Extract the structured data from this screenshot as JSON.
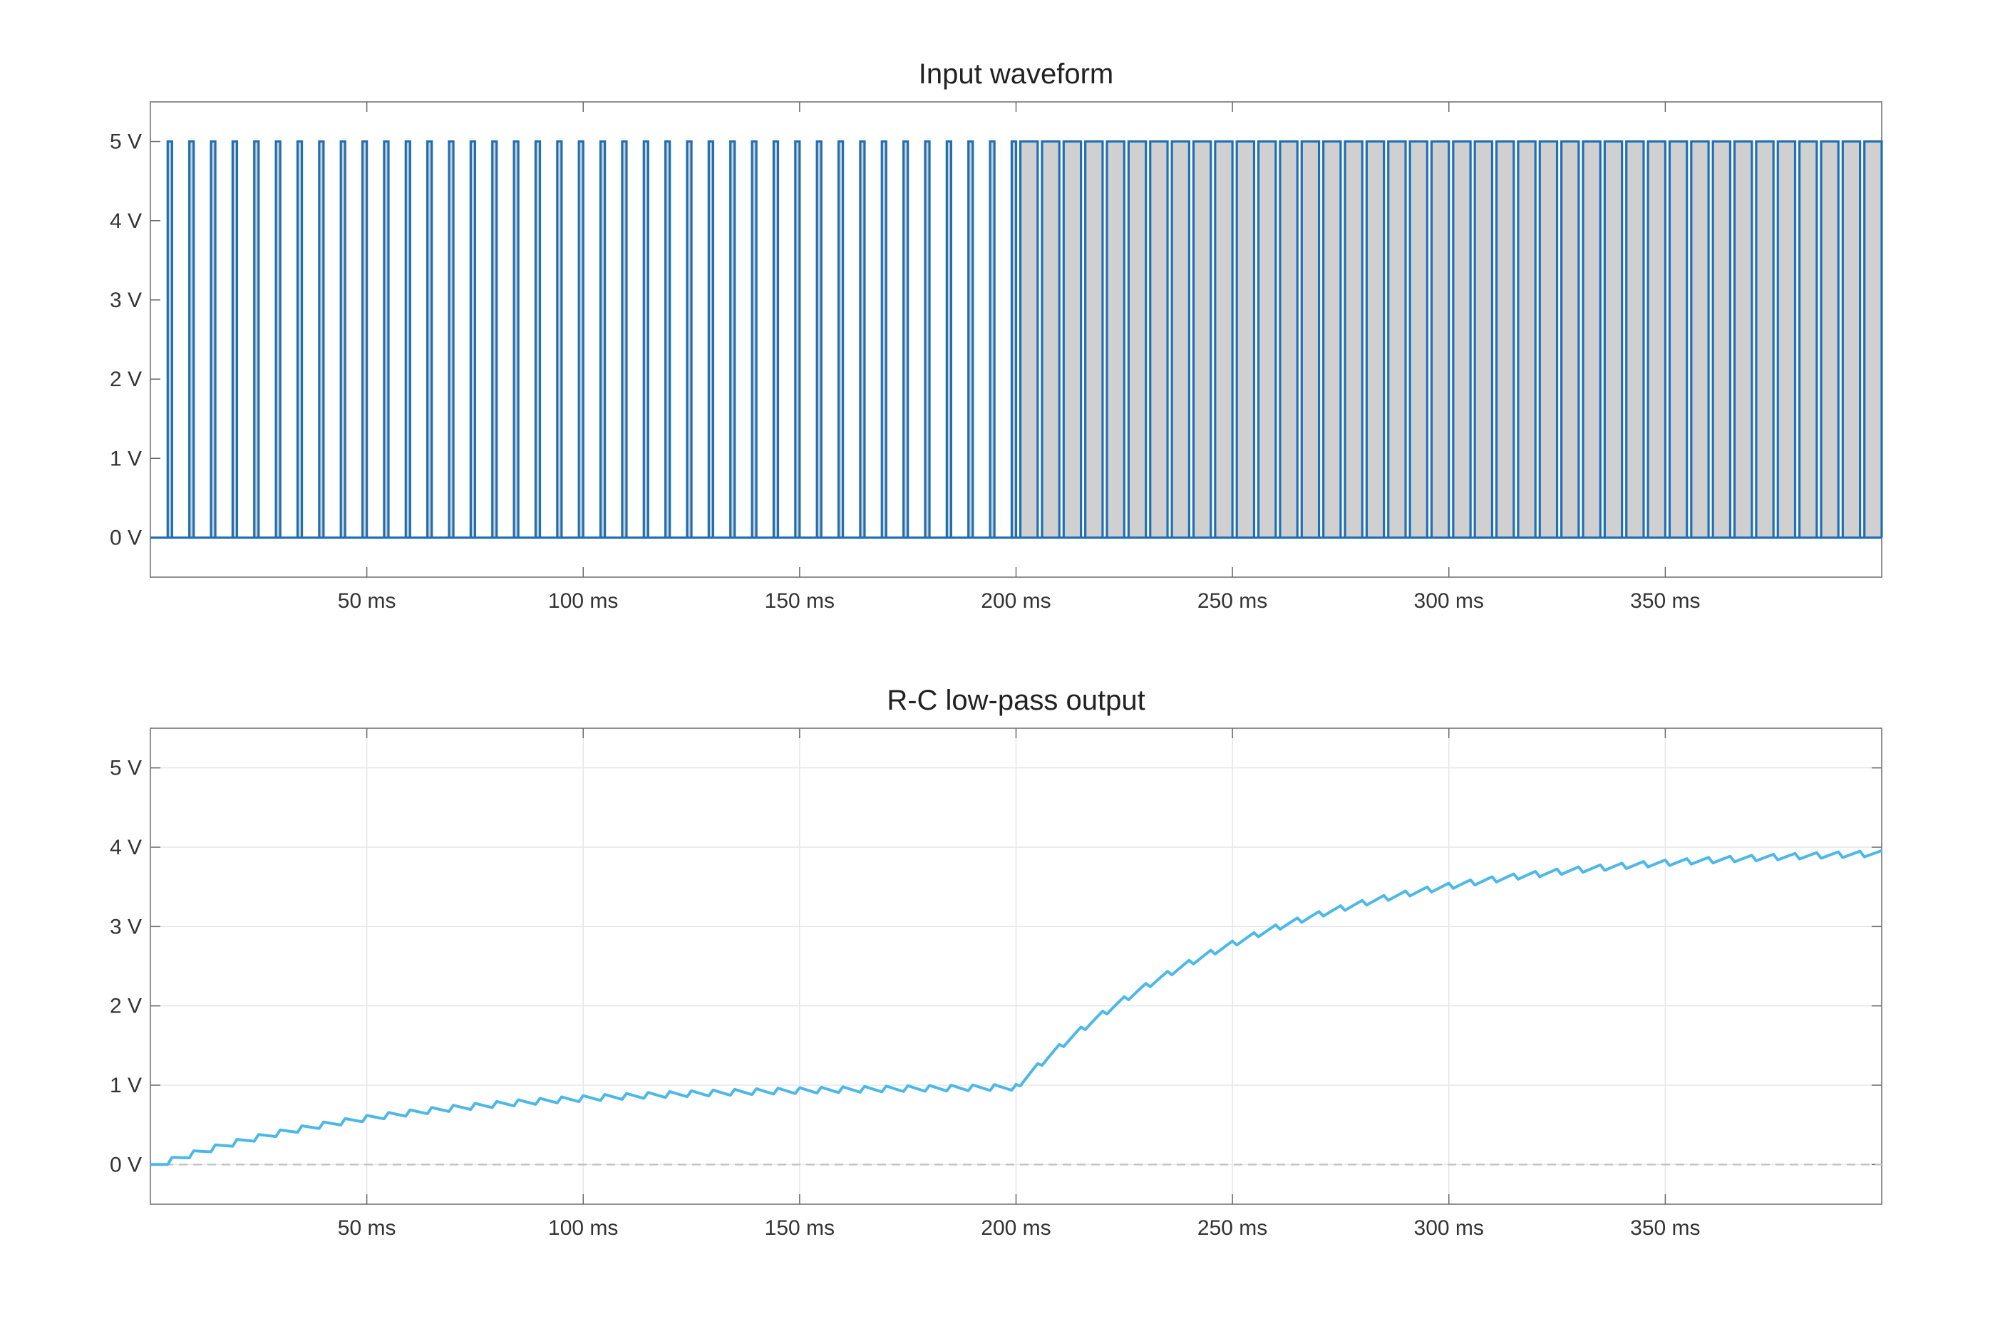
{
  "chart_data": [
    {
      "type": "line",
      "title": "Input waveform",
      "xlabel": "",
      "ylabel": "",
      "x_unit": "ms",
      "y_unit": "V",
      "xlim": [
        0,
        400
      ],
      "ylim": [
        -0.5,
        5.5
      ],
      "x_ticks": [
        50,
        100,
        150,
        200,
        250,
        300,
        350
      ],
      "x_tick_labels": [
        "50 ms",
        "100 ms",
        "150 ms",
        "200 ms",
        "250 ms",
        "300 ms",
        "350 ms"
      ],
      "y_ticks": [
        0,
        1,
        2,
        3,
        4,
        5
      ],
      "y_tick_labels": [
        "0 V",
        "1 V",
        "2 V",
        "3 V",
        "4 V",
        "5 V"
      ],
      "grid": false,
      "series": [
        {
          "kind": "pwm-square-wave",
          "low_v": 0,
          "high_v": 5,
          "period_ms": 5,
          "segments": [
            {
              "start_ms": 0,
              "end_ms": 200,
              "duty": 0.2
            },
            {
              "start_ms": 200,
              "end_ms": 400,
              "duty": 0.8
            }
          ],
          "color": "#1f6fb4",
          "fill": "#d0d0d0"
        }
      ]
    },
    {
      "type": "line",
      "title": "R-C low-pass output",
      "xlabel": "",
      "ylabel": "",
      "x_unit": "ms",
      "y_unit": "V",
      "xlim": [
        0,
        400
      ],
      "ylim": [
        -0.5,
        5.5
      ],
      "x_ticks": [
        50,
        100,
        150,
        200,
        250,
        300,
        350
      ],
      "x_tick_labels": [
        "50 ms",
        "100 ms",
        "150 ms",
        "200 ms",
        "250 ms",
        "300 ms",
        "350 ms"
      ],
      "y_ticks": [
        0,
        1,
        2,
        3,
        4,
        5
      ],
      "y_tick_labels": [
        "0 V",
        "1 V",
        "2 V",
        "3 V",
        "4 V",
        "5 V"
      ],
      "grid": true,
      "reference_line_y": 0,
      "series": [
        {
          "kind": "rc-filtered-pwm",
          "time_constant_ms": 55,
          "color": "#4db8e8",
          "approx_values": [
            {
              "x": 0,
              "y": 0.0
            },
            {
              "x": 50,
              "y": 0.62
            },
            {
              "x": 100,
              "y": 0.88
            },
            {
              "x": 150,
              "y": 0.96
            },
            {
              "x": 200,
              "y": 0.98
            },
            {
              "x": 250,
              "y": 3.0
            },
            {
              "x": 300,
              "y": 3.62
            },
            {
              "x": 350,
              "y": 3.88
            },
            {
              "x": 400,
              "y": 3.95
            }
          ]
        }
      ]
    }
  ]
}
